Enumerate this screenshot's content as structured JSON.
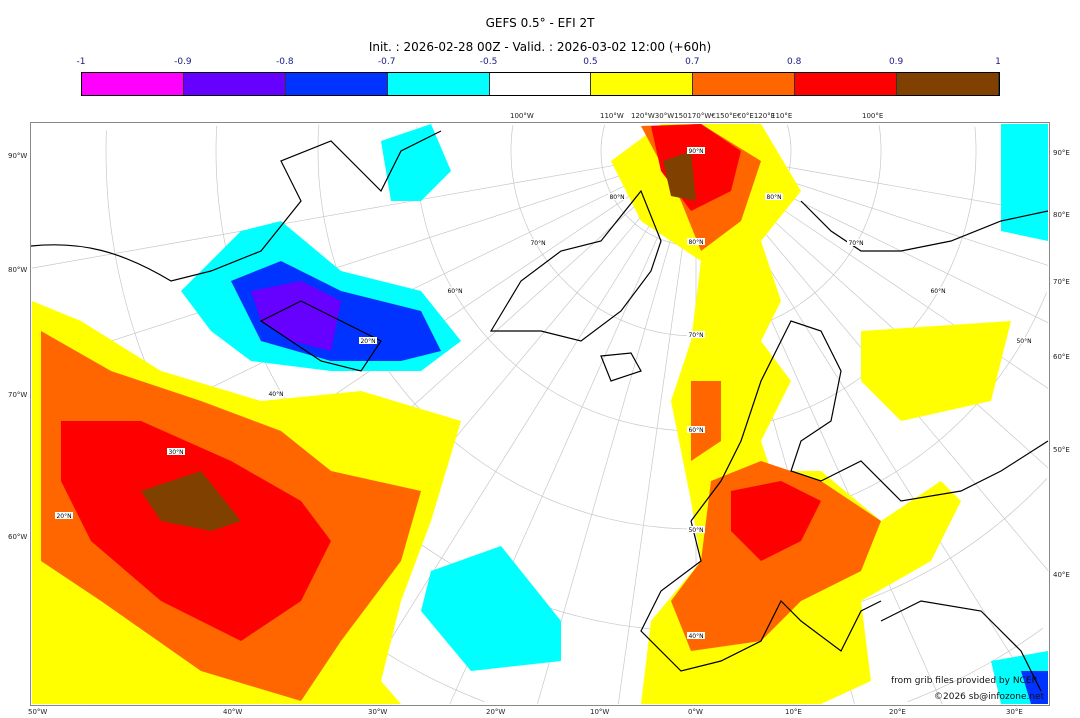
{
  "title": "GEFS 0.5° - EFI 2T",
  "subtitle": "Init. : 2026-02-28 00Z - Valid. : 2026-03-02 12:00 (+60h)",
  "colorbar": {
    "ticks": [
      "-1",
      "-0.9",
      "-0.8",
      "-0.7",
      "-0.5",
      "0.5",
      "0.7",
      "0.8",
      "0.9",
      "1"
    ],
    "colors": [
      "#ff00ff",
      "#6600ff",
      "#0033ff",
      "#00ffff",
      "#ffffff",
      "#ffff00",
      "#ff6600",
      "#ff0000",
      "#804000"
    ]
  },
  "axes": {
    "left": [
      "90°W",
      "80°W",
      "70°W",
      "60°W"
    ],
    "right": [
      "90°E",
      "80°E",
      "70°E",
      "60°E",
      "50°E",
      "40°E"
    ],
    "bottom": [
      "50°W",
      "40°W",
      "30°W",
      "20°W",
      "10°W",
      "0°W",
      "10°E",
      "20°E",
      "30°E"
    ],
    "top": [
      "100°W",
      "110°W",
      "120°W30°W150170°W€150°E€0°E120°E",
      "110°E",
      "100°E"
    ]
  },
  "map_labels": [
    "90°N",
    "80°N",
    "70°N",
    "60°N",
    "50°N",
    "40°N",
    "30°N",
    "20°N",
    "20°N",
    "40°N",
    "60°N",
    "70°N",
    "80°N",
    "80°N",
    "70°N",
    "60°N",
    "50°N"
  ],
  "credits": {
    "source": "from grib files provided by NCEP",
    "copyright": "©2026 sb@infozone.net"
  }
}
